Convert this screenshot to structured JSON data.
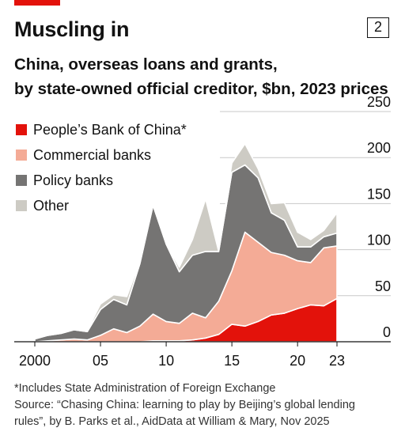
{
  "header": {
    "title": "Muscling in",
    "chart_number": "2",
    "subtitle_line1": "China, overseas loans and grants,",
    "subtitle_line2": "by state-owned official creditor, $bn, 2023 prices"
  },
  "colors": {
    "brand_red": "#e3120b",
    "pboc": "#e3120b",
    "commercial": "#f4ab96",
    "policy": "#757473",
    "other": "#cdcbc4",
    "grid": "#c8c8c8"
  },
  "footnotes": {
    "asterisk": "*Includes State Administration of Foreign Exchange",
    "source_line1": "Source: “Chasing China: learning to play by Beijing’s global lending",
    "source_line2": "rules”, by B. Parks et al., AidData at William & Mary, Nov 2025"
  },
  "chart_data": {
    "type": "area",
    "stacked": true,
    "title": "Muscling in",
    "subtitle": "China, overseas loans and grants, by state-owned official creditor, $bn, 2023 prices",
    "xlabel": "",
    "ylabel": "",
    "ylim": [
      0,
      250
    ],
    "yticks": [
      0,
      50,
      100,
      150,
      200,
      250
    ],
    "y_axis_position": "right",
    "xlim": [
      2000,
      2023
    ],
    "xticks": [
      2000,
      2005,
      2010,
      2015,
      2020,
      2023
    ],
    "xtick_labels": [
      "2000",
      "05",
      "10",
      "15",
      "20",
      "23"
    ],
    "grid": true,
    "legend_placement": "top-left",
    "x": [
      2000,
      2001,
      2002,
      2003,
      2004,
      2005,
      2006,
      2007,
      2008,
      2009,
      2010,
      2011,
      2012,
      2013,
      2014,
      2015,
      2016,
      2017,
      2018,
      2019,
      2020,
      2021,
      2022,
      2023
    ],
    "series": [
      {
        "name": "People’s Bank of China*",
        "values": [
          0,
          0,
          0,
          0,
          0,
          0,
          0,
          0,
          0,
          1,
          1,
          1,
          2,
          4,
          8,
          19,
          17,
          22,
          29,
          31,
          36,
          40,
          39,
          47
        ]
      },
      {
        "name": "Commercial banks",
        "values": [
          0,
          1,
          2,
          3,
          2,
          7,
          14,
          10,
          17,
          29,
          21,
          19,
          29,
          22,
          36,
          58,
          102,
          86,
          68,
          63,
          52,
          46,
          63,
          57
        ]
      },
      {
        "name": "Policy banks",
        "values": [
          3,
          6,
          7,
          10,
          9,
          28,
          32,
          30,
          68,
          118,
          84,
          56,
          63,
          72,
          54,
          107,
          73,
          70,
          43,
          38,
          15,
          17,
          12,
          14
        ]
      },
      {
        "name": "Other",
        "values": [
          1,
          1,
          1,
          1,
          1,
          6,
          5,
          9,
          2,
          3,
          1,
          5,
          17,
          57,
          0,
          10,
          23,
          10,
          10,
          19,
          16,
          8,
          7,
          22
        ]
      }
    ]
  }
}
